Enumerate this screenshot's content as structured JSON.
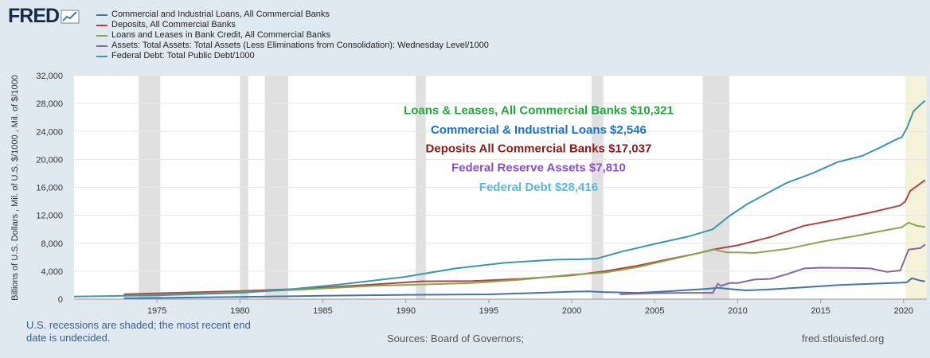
{
  "brand": {
    "name": "FRED",
    "logo_icon": "line-chart-icon"
  },
  "legend": [
    {
      "label": "Commercial and Industrial Loans, All Commercial Banks",
      "color": "#4572a7"
    },
    {
      "label": "Deposits, All Commercial Banks",
      "color": "#aa4643"
    },
    {
      "label": "Loans and Leases in Bank Credit, All Commercial Banks",
      "color": "#89a54e"
    },
    {
      "label": "Assets: Total Assets: Total Assets (Less Eliminations from Consolidation): Wednesday Level/1000",
      "color": "#80699b"
    },
    {
      "label": "Federal Debt: Total Public Debt/1000",
      "color": "#3d96ae"
    }
  ],
  "footer": {
    "note": "U.S. recessions are shaded; the most recent end date is undecided.",
    "source": "Sources: Board of Governors;",
    "url": "fred.stlouisfed.org"
  },
  "chart_data": {
    "type": "line",
    "ylabel": "Billions of U.S. Dollars , Mil. of U.S. $/1000 , Mil. of $/1000",
    "ylim": [
      0,
      32000
    ],
    "xlim": [
      1970,
      2021.4
    ],
    "y_ticks": [
      0,
      4000,
      8000,
      12000,
      16000,
      20000,
      24000,
      28000,
      32000
    ],
    "y_tick_labels": [
      "0",
      "4,000",
      "8,000",
      "12,000",
      "16,000",
      "20,000",
      "24,000",
      "28,000",
      "32,000"
    ],
    "x_ticks": [
      1975,
      1980,
      1985,
      1990,
      1995,
      2000,
      2005,
      2010,
      2015,
      2020
    ],
    "x_tick_labels": [
      "1975",
      "1980",
      "1985",
      "1990",
      "1995",
      "2000",
      "2005",
      "2010",
      "2015",
      "2020"
    ],
    "recessions": [
      [
        1973.9,
        1975.2
      ],
      [
        1980.0,
        1980.5
      ],
      [
        1981.5,
        1982.9
      ],
      [
        1990.6,
        1991.2
      ],
      [
        2001.2,
        2001.9
      ],
      [
        2007.9,
        2009.5
      ]
    ],
    "undecided_recession": [
      2020.1,
      2021.4
    ],
    "annotations": [
      {
        "text": "Loans & Leases, All Commercial Banks $10,321",
        "color": "#22a83a",
        "x": 1998,
        "y": 26500
      },
      {
        "text": "Commercial & Industrial Loans $2,546",
        "color": "#1a73c8",
        "x": 1998,
        "y": 23700
      },
      {
        "text": "Deposits All Commercial Banks $17,037",
        "color": "#8b1a1a",
        "x": 1998,
        "y": 21000
      },
      {
        "text": "Federal Reserve Assets $7,810",
        "color": "#8a4fc9",
        "x": 1998,
        "y": 18300
      },
      {
        "text": "Federal Debt $28,416",
        "color": "#5bb6e6",
        "x": 1998,
        "y": 15500
      }
    ],
    "series": [
      {
        "name": "Commercial and Industrial Loans, All Commercial Banks",
        "color": "#4572a7",
        "x": [
          1973,
          1976,
          1980,
          1985,
          1990,
          1995,
          1998,
          2000,
          2001,
          2002,
          2004,
          2006,
          2008,
          2008.8,
          2009.5,
          2010.5,
          2012,
          2014,
          2016,
          2018,
          2019.8,
          2020.2,
          2020.5,
          2021,
          2021.3
        ],
        "values": [
          130,
          200,
          320,
          480,
          620,
          680,
          900,
          1070,
          1110,
          1000,
          900,
          1150,
          1450,
          1620,
          1450,
          1250,
          1400,
          1700,
          2000,
          2200,
          2350,
          2400,
          3000,
          2650,
          2546
        ]
      },
      {
        "name": "Deposits, All Commercial Banks",
        "color": "#aa4643",
        "x": [
          1973,
          1976,
          1980,
          1984,
          1988,
          1991,
          1994,
          1997,
          2000,
          2002,
          2004,
          2006,
          2007.5,
          2008.5,
          2009,
          2010,
          2012,
          2014,
          2016,
          2018,
          2019.8,
          2020.1,
          2020.4,
          2021.3
        ],
        "values": [
          700,
          900,
          1150,
          1500,
          2100,
          2550,
          2600,
          2900,
          3400,
          4000,
          4800,
          5800,
          6500,
          7100,
          7300,
          7700,
          8900,
          10500,
          11400,
          12400,
          13400,
          14000,
          15500,
          17037
        ]
      },
      {
        "name": "Loans and Leases in Bank Credit, All Commercial Banks",
        "color": "#89a54e",
        "x": [
          1973,
          1976,
          1980,
          1984,
          1988,
          1991,
          1994,
          1997,
          2000,
          2002,
          2004,
          2006,
          2007.5,
          2008.6,
          2009.3,
          2010,
          2011,
          2013,
          2015,
          2017,
          2019,
          2019.9,
          2020.3,
          2020.8,
          2021.3
        ],
        "values": [
          500,
          700,
          1000,
          1400,
          1900,
          2100,
          2300,
          2800,
          3500,
          3800,
          4600,
          5700,
          6500,
          7100,
          6700,
          6700,
          6600,
          7200,
          8200,
          9000,
          9900,
          10300,
          10950,
          10500,
          10321
        ]
      },
      {
        "name": "Assets: Total Assets (Less Eliminations from Consolidation)",
        "color": "#80699b",
        "x": [
          2002.9,
          2005,
          2007,
          2008.5,
          2008.8,
          2009,
          2009.5,
          2010,
          2011,
          2012,
          2013,
          2014,
          2015,
          2017,
          2018,
          2019,
          2019.8,
          2020.1,
          2020.3,
          2021,
          2021.3
        ],
        "values": [
          700,
          850,
          900,
          900,
          2200,
          1900,
          2300,
          2300,
          2800,
          2900,
          3600,
          4400,
          4500,
          4450,
          4400,
          3900,
          4100,
          5900,
          7100,
          7300,
          7810
        ]
      },
      {
        "name": "Federal Debt: Total Public Debt/1000",
        "color": "#3d96ae",
        "x": [
          1970,
          1975,
          1980,
          1983,
          1986,
          1990,
          1993,
          1996,
          1999,
          2000.5,
          2001.5,
          2003,
          2005,
          2007,
          2008.5,
          2009.5,
          2010.5,
          2011.5,
          2013,
          2014.5,
          2016,
          2017.5,
          2018.5,
          2019.5,
          2019.9,
          2020.2,
          2020.6,
          2021,
          2021.3
        ],
        "values": [
          380,
          540,
          900,
          1400,
          2100,
          3200,
          4400,
          5200,
          5650,
          5700,
          5800,
          6800,
          7900,
          8950,
          10000,
          11900,
          13500,
          14800,
          16700,
          18000,
          19600,
          20500,
          21600,
          22800,
          23200,
          24500,
          26900,
          27800,
          28416
        ]
      }
    ]
  }
}
